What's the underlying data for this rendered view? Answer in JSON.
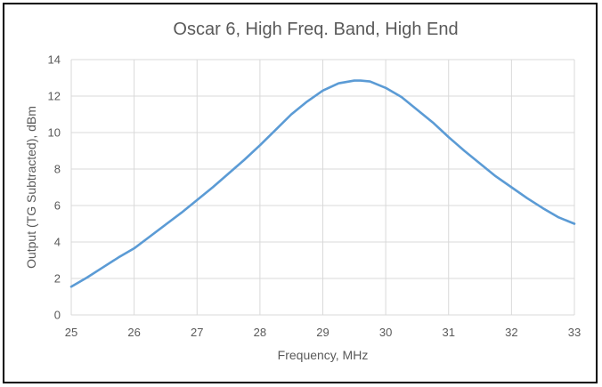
{
  "chart_data": {
    "type": "line",
    "title": "Oscar 6, High Freq. Band, High End",
    "xlabel": "Frequency, MHz",
    "ylabel": "Output (TG Subtracted), dBm",
    "xlim": [
      25,
      33
    ],
    "ylim": [
      0,
      14
    ],
    "x_ticks": [
      25,
      26,
      27,
      28,
      29,
      30,
      31,
      32,
      33
    ],
    "y_ticks": [
      0,
      2,
      4,
      6,
      8,
      10,
      12,
      14
    ],
    "grid": true,
    "legend": "none",
    "line_color": "#5B9BD5",
    "series": [
      {
        "x": [
          25.0,
          25.25,
          25.5,
          25.75,
          26.0,
          26.25,
          26.5,
          26.75,
          27.0,
          27.25,
          27.5,
          27.75,
          28.0,
          28.25,
          28.5,
          28.75,
          29.0,
          29.25,
          29.5,
          29.6,
          29.75,
          30.0,
          30.25,
          30.5,
          30.75,
          31.0,
          31.25,
          31.5,
          31.75,
          32.0,
          32.25,
          32.5,
          32.75,
          33.0
        ],
        "y": [
          1.55,
          2.05,
          2.6,
          3.15,
          3.65,
          4.3,
          4.95,
          5.6,
          6.3,
          7.0,
          7.75,
          8.5,
          9.3,
          10.15,
          11.0,
          11.7,
          12.3,
          12.7,
          12.85,
          12.85,
          12.8,
          12.45,
          11.95,
          11.25,
          10.55,
          9.75,
          9.0,
          8.3,
          7.6,
          7.0,
          6.4,
          5.85,
          5.35,
          5.0
        ]
      }
    ]
  }
}
